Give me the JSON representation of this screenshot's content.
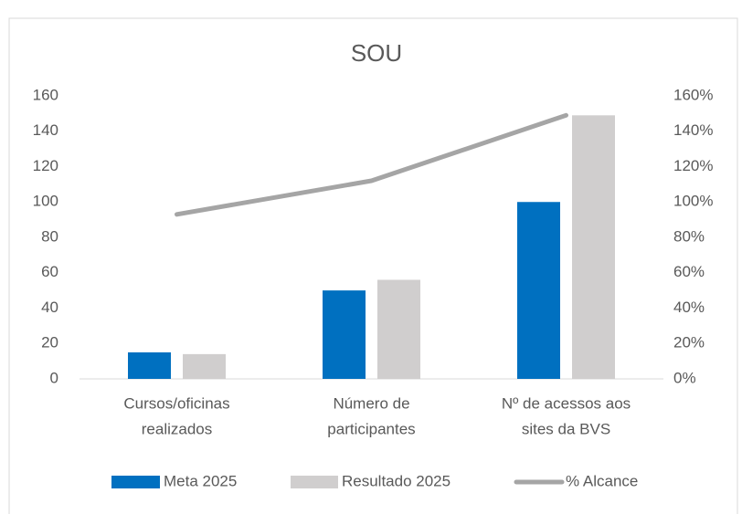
{
  "chart_data": {
    "type": "bar",
    "title": "SOU",
    "categories": [
      [
        "Cursos/oficinas",
        "realizados"
      ],
      [
        "Número de",
        "participantes"
      ],
      [
        "Nº de acessos aos",
        "sites da BVS"
      ]
    ],
    "series": [
      {
        "name": "Meta 2025",
        "color": "#0070c0",
        "values": [
          15,
          50,
          100
        ]
      },
      {
        "name": "Resultado 2025",
        "color": "#d0cece",
        "values": [
          14,
          56,
          149
        ]
      },
      {
        "name": "% Alcance",
        "color": "#a5a5a5",
        "values": [
          93,
          112,
          149
        ],
        "axis": "y2",
        "type": "line"
      }
    ],
    "ylim": [
      0,
      160
    ],
    "yticks": [
      0,
      20,
      40,
      60,
      80,
      100,
      120,
      140,
      160
    ],
    "y2lim": [
      0,
      160
    ],
    "y2ticks": [
      {
        "value": 0,
        "label": "0%"
      },
      {
        "value": 20,
        "label": "20%"
      },
      {
        "value": 40,
        "label": "40%"
      },
      {
        "value": 60,
        "label": "60%"
      },
      {
        "value": 80,
        "label": "80%"
      },
      {
        "value": 100,
        "label": "100%"
      },
      {
        "value": 120,
        "label": "120%"
      },
      {
        "value": 140,
        "label": "140%"
      },
      {
        "value": 160,
        "label": "160%"
      }
    ],
    "grid": false,
    "legend": "bottom"
  }
}
